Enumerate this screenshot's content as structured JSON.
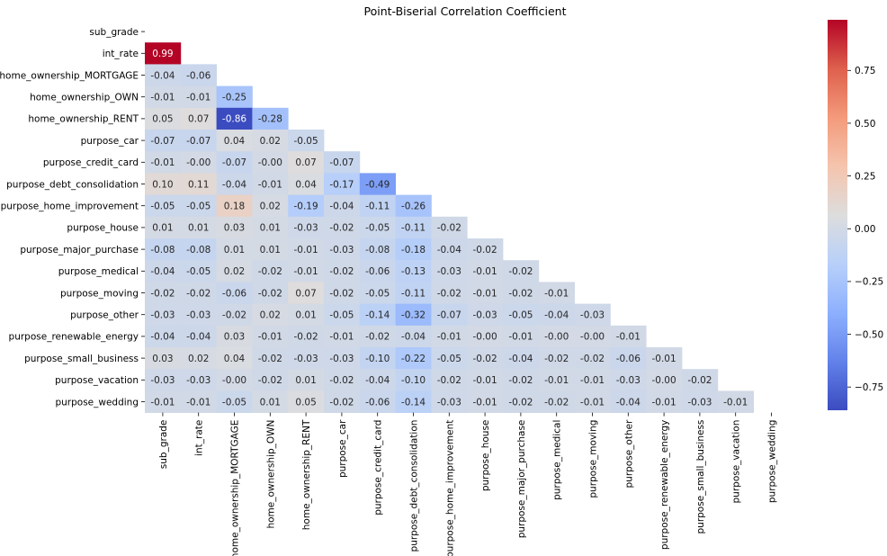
{
  "chart_data": {
    "type": "heatmap",
    "title": "Point-Biserial Correlation Coefficient",
    "labels": [
      "sub_grade",
      "int_rate",
      "home_ownership_MORTGAGE",
      "home_ownership_OWN",
      "home_ownership_RENT",
      "purpose_car",
      "purpose_credit_card",
      "purpose_debt_consolidation",
      "purpose_home_improvement",
      "purpose_house",
      "purpose_major_purchase",
      "purpose_medical",
      "purpose_moving",
      "purpose_other",
      "purpose_renewable_energy",
      "purpose_small_business",
      "purpose_vacation",
      "purpose_wedding"
    ],
    "value_labels": [
      [],
      [
        "0.99"
      ],
      [
        "-0.04",
        "-0.06"
      ],
      [
        "-0.01",
        "-0.01",
        "-0.25"
      ],
      [
        "0.05",
        "0.07",
        "-0.86",
        "-0.28"
      ],
      [
        "-0.07",
        "-0.07",
        "0.04",
        "0.02",
        "-0.05"
      ],
      [
        "-0.01",
        "-0.00",
        "-0.07",
        "-0.00",
        "0.07",
        "-0.07"
      ],
      [
        "0.10",
        "0.11",
        "-0.04",
        "-0.01",
        "0.04",
        "-0.17",
        "-0.49"
      ],
      [
        "-0.05",
        "-0.05",
        "0.18",
        "0.02",
        "-0.19",
        "-0.04",
        "-0.11",
        "-0.26"
      ],
      [
        "0.01",
        "0.01",
        "0.03",
        "0.01",
        "-0.03",
        "-0.02",
        "-0.05",
        "-0.11",
        "-0.02"
      ],
      [
        "-0.08",
        "-0.08",
        "0.01",
        "0.01",
        "-0.01",
        "-0.03",
        "-0.08",
        "-0.18",
        "-0.04",
        "-0.02"
      ],
      [
        "-0.04",
        "-0.05",
        "0.02",
        "-0.02",
        "-0.01",
        "-0.02",
        "-0.06",
        "-0.13",
        "-0.03",
        "-0.01",
        "-0.02"
      ],
      [
        "-0.02",
        "-0.02",
        "-0.06",
        "-0.02",
        "0.07",
        "-0.02",
        "-0.05",
        "-0.11",
        "-0.02",
        "-0.01",
        "-0.02",
        "-0.01"
      ],
      [
        "-0.03",
        "-0.03",
        "-0.02",
        "0.02",
        "0.01",
        "-0.05",
        "-0.14",
        "-0.32",
        "-0.07",
        "-0.03",
        "-0.05",
        "-0.04",
        "-0.03"
      ],
      [
        "-0.04",
        "-0.04",
        "0.03",
        "-0.01",
        "-0.02",
        "-0.01",
        "-0.02",
        "-0.04",
        "-0.01",
        "-0.00",
        "-0.01",
        "-0.00",
        "-0.00",
        "-0.01"
      ],
      [
        "0.03",
        "0.02",
        "0.04",
        "-0.02",
        "-0.03",
        "-0.03",
        "-0.10",
        "-0.22",
        "-0.05",
        "-0.02",
        "-0.04",
        "-0.02",
        "-0.02",
        "-0.06",
        "-0.01"
      ],
      [
        "-0.03",
        "-0.03",
        "-0.00",
        "-0.02",
        "0.01",
        "-0.02",
        "-0.04",
        "-0.10",
        "-0.02",
        "-0.01",
        "-0.02",
        "-0.01",
        "-0.01",
        "-0.03",
        "-0.00",
        "-0.02"
      ],
      [
        "-0.01",
        "-0.01",
        "-0.05",
        "0.01",
        "0.05",
        "-0.02",
        "-0.06",
        "-0.14",
        "-0.03",
        "-0.01",
        "-0.02",
        "-0.02",
        "-0.01",
        "-0.04",
        "-0.01",
        "-0.03",
        "-0.01"
      ]
    ],
    "mask": "upper triangle including diagonal",
    "colormap": "coolwarm",
    "vmin": -0.86,
    "vmax": 0.99,
    "colorbar_ticks": [
      "0.75",
      "0.50",
      "0.25",
      "0.00",
      "−0.25",
      "−0.50",
      "−0.75"
    ],
    "colorbar_tick_values": [
      0.75,
      0.5,
      0.25,
      0.0,
      -0.25,
      -0.5,
      -0.75
    ]
  }
}
